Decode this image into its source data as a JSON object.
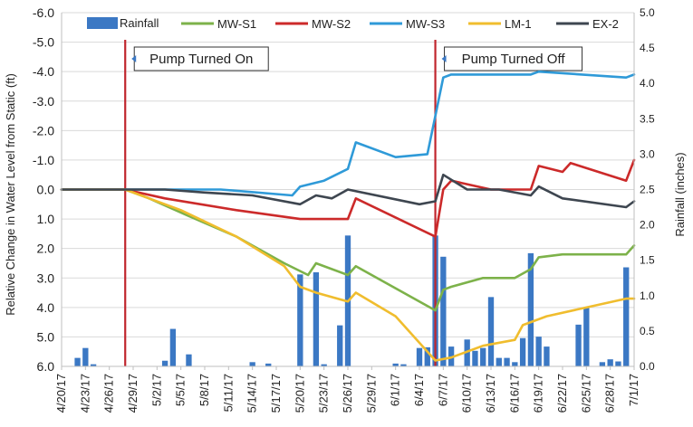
{
  "chart_data": {
    "type": "line",
    "ylabel": "Relative Change in Water Level from Static (ft)",
    "y2label": "Rainfall (inches)",
    "ylim": [
      6.0,
      -6.0
    ],
    "y_inverted": true,
    "y2lim": [
      0.0,
      5.0
    ],
    "y_ticks": [
      "-6.0",
      "-5.0",
      "-4.0",
      "-3.0",
      "-2.0",
      "-1.0",
      "0.0",
      "1.0",
      "2.0",
      "3.0",
      "4.0",
      "5.0",
      "6.0"
    ],
    "y2_ticks": [
      "0.0",
      "0.5",
      "1.0",
      "1.5",
      "2.0",
      "2.5",
      "3.0",
      "3.5",
      "4.0",
      "4.5",
      "5.0"
    ],
    "x_range": [
      "2017-04-20",
      "2017-07-01"
    ],
    "x_ticks": [
      "4/20/17",
      "4/23/17",
      "4/26/17",
      "4/29/17",
      "5/2/17",
      "5/5/17",
      "5/8/17",
      "5/11/17",
      "5/14/17",
      "5/17/17",
      "5/20/17",
      "5/23/17",
      "5/26/17",
      "5/29/17",
      "6/1/17",
      "6/4/17",
      "6/7/17",
      "6/10/17",
      "6/13/17",
      "6/16/17",
      "6/19/17",
      "6/22/17",
      "6/25/17",
      "6/28/17",
      "7/1/17"
    ],
    "legend_position": "top",
    "grid": "horizontal",
    "events": [
      {
        "label": "Pump Turned On",
        "x": "2017-04-28"
      },
      {
        "label": "Pump Turned Off",
        "x": "2017-06-06"
      }
    ],
    "rainfall": {
      "name": "Rainfall",
      "color": "#3b78c4",
      "bars": [
        {
          "x": "2017-04-22",
          "v": 0.12
        },
        {
          "x": "2017-04-23",
          "v": 0.26
        },
        {
          "x": "2017-04-24",
          "v": 0.03
        },
        {
          "x": "2017-05-03",
          "v": 0.08
        },
        {
          "x": "2017-05-04",
          "v": 0.53
        },
        {
          "x": "2017-05-06",
          "v": 0.17
        },
        {
          "x": "2017-05-14",
          "v": 0.06
        },
        {
          "x": "2017-05-16",
          "v": 0.04
        },
        {
          "x": "2017-05-20",
          "v": 1.3
        },
        {
          "x": "2017-05-22",
          "v": 1.33
        },
        {
          "x": "2017-05-23",
          "v": 0.03
        },
        {
          "x": "2017-05-25",
          "v": 0.58
        },
        {
          "x": "2017-05-26",
          "v": 1.85
        },
        {
          "x": "2017-06-01",
          "v": 0.04
        },
        {
          "x": "2017-06-02",
          "v": 0.03
        },
        {
          "x": "2017-06-04",
          "v": 0.26
        },
        {
          "x": "2017-06-05",
          "v": 0.27
        },
        {
          "x": "2017-06-06",
          "v": 1.85
        },
        {
          "x": "2017-06-07",
          "v": 1.55
        },
        {
          "x": "2017-06-08",
          "v": 0.28
        },
        {
          "x": "2017-06-10",
          "v": 0.38
        },
        {
          "x": "2017-06-11",
          "v": 0.22
        },
        {
          "x": "2017-06-12",
          "v": 0.26
        },
        {
          "x": "2017-06-13",
          "v": 0.98
        },
        {
          "x": "2017-06-14",
          "v": 0.12
        },
        {
          "x": "2017-06-15",
          "v": 0.12
        },
        {
          "x": "2017-06-16",
          "v": 0.06
        },
        {
          "x": "2017-06-17",
          "v": 0.4
        },
        {
          "x": "2017-06-18",
          "v": 1.6
        },
        {
          "x": "2017-06-19",
          "v": 0.42
        },
        {
          "x": "2017-06-20",
          "v": 0.28
        },
        {
          "x": "2017-06-24",
          "v": 0.59
        },
        {
          "x": "2017-06-25",
          "v": 0.83
        },
        {
          "x": "2017-06-27",
          "v": 0.06
        },
        {
          "x": "2017-06-28",
          "v": 0.1
        },
        {
          "x": "2017-06-29",
          "v": 0.07
        },
        {
          "x": "2017-06-30",
          "v": 1.4
        }
      ]
    },
    "series": [
      {
        "name": "MW-S1",
        "color": "#7db24a",
        "points": [
          [
            "2017-04-20",
            0.0
          ],
          [
            "2017-04-28",
            0.0
          ],
          [
            "2017-05-01",
            0.3
          ],
          [
            "2017-05-06",
            0.9
          ],
          [
            "2017-05-12",
            1.6
          ],
          [
            "2017-05-18",
            2.5
          ],
          [
            "2017-05-21",
            2.9
          ],
          [
            "2017-05-22",
            2.5
          ],
          [
            "2017-05-26",
            2.9
          ],
          [
            "2017-05-27",
            2.6
          ],
          [
            "2017-06-06",
            4.1
          ],
          [
            "2017-06-07",
            3.4
          ],
          [
            "2017-06-08",
            3.3
          ],
          [
            "2017-06-12",
            3.0
          ],
          [
            "2017-06-16",
            3.0
          ],
          [
            "2017-06-18",
            2.7
          ],
          [
            "2017-06-19",
            2.3
          ],
          [
            "2017-06-22",
            2.2
          ],
          [
            "2017-06-30",
            2.2
          ],
          [
            "2017-07-01",
            1.9
          ]
        ]
      },
      {
        "name": "MW-S2",
        "color": "#cc2a2a",
        "points": [
          [
            "2017-04-20",
            0.0
          ],
          [
            "2017-04-28",
            0.0
          ],
          [
            "2017-05-03",
            0.3
          ],
          [
            "2017-05-12",
            0.7
          ],
          [
            "2017-05-20",
            1.0
          ],
          [
            "2017-05-26",
            1.0
          ],
          [
            "2017-05-27",
            0.3
          ],
          [
            "2017-06-06",
            1.6
          ],
          [
            "2017-06-07",
            0.0
          ],
          [
            "2017-06-08",
            -0.3
          ],
          [
            "2017-06-13",
            0.0
          ],
          [
            "2017-06-18",
            0.0
          ],
          [
            "2017-06-19",
            -0.8
          ],
          [
            "2017-06-22",
            -0.6
          ],
          [
            "2017-06-23",
            -0.9
          ],
          [
            "2017-06-30",
            -0.3
          ],
          [
            "2017-07-01",
            -1.0
          ]
        ]
      },
      {
        "name": "MW-S3",
        "color": "#2f9ad8",
        "points": [
          [
            "2017-04-20",
            0.0
          ],
          [
            "2017-04-28",
            0.0
          ],
          [
            "2017-05-10",
            0.0
          ],
          [
            "2017-05-19",
            0.2
          ],
          [
            "2017-05-20",
            -0.1
          ],
          [
            "2017-05-23",
            -0.3
          ],
          [
            "2017-05-26",
            -0.7
          ],
          [
            "2017-05-27",
            -1.6
          ],
          [
            "2017-06-01",
            -1.1
          ],
          [
            "2017-06-05",
            -1.2
          ],
          [
            "2017-06-06",
            -2.5
          ],
          [
            "2017-06-07",
            -3.8
          ],
          [
            "2017-06-08",
            -3.9
          ],
          [
            "2017-06-18",
            -3.9
          ],
          [
            "2017-06-19",
            -4.0
          ],
          [
            "2017-06-30",
            -3.8
          ],
          [
            "2017-07-01",
            -3.9
          ]
        ]
      },
      {
        "name": "LM-1",
        "color": "#f0bd2e",
        "points": [
          [
            "2017-04-20",
            0.0
          ],
          [
            "2017-04-28",
            0.0
          ],
          [
            "2017-05-05",
            0.7
          ],
          [
            "2017-05-12",
            1.6
          ],
          [
            "2017-05-18",
            2.6
          ],
          [
            "2017-05-20",
            3.3
          ],
          [
            "2017-05-22",
            3.5
          ],
          [
            "2017-05-26",
            3.8
          ],
          [
            "2017-05-27",
            3.5
          ],
          [
            "2017-06-01",
            4.3
          ],
          [
            "2017-06-06",
            5.8
          ],
          [
            "2017-06-08",
            5.7
          ],
          [
            "2017-06-12",
            5.3
          ],
          [
            "2017-06-16",
            5.1
          ],
          [
            "2017-06-17",
            4.6
          ],
          [
            "2017-06-20",
            4.3
          ],
          [
            "2017-06-30",
            3.7
          ],
          [
            "2017-07-01",
            3.7
          ]
        ]
      },
      {
        "name": "EX-2",
        "color": "#3e4650",
        "points": [
          [
            "2017-04-20",
            0.0
          ],
          [
            "2017-04-28",
            0.0
          ],
          [
            "2017-05-03",
            0.0
          ],
          [
            "2017-05-08",
            0.1
          ],
          [
            "2017-05-14",
            0.2
          ],
          [
            "2017-05-20",
            0.5
          ],
          [
            "2017-05-22",
            0.2
          ],
          [
            "2017-05-24",
            0.3
          ],
          [
            "2017-05-26",
            0.0
          ],
          [
            "2017-06-04",
            0.5
          ],
          [
            "2017-06-06",
            0.4
          ],
          [
            "2017-06-07",
            -0.5
          ],
          [
            "2017-06-10",
            0.0
          ],
          [
            "2017-06-14",
            0.0
          ],
          [
            "2017-06-18",
            0.2
          ],
          [
            "2017-06-19",
            -0.1
          ],
          [
            "2017-06-22",
            0.3
          ],
          [
            "2017-06-30",
            0.6
          ],
          [
            "2017-07-01",
            0.4
          ]
        ]
      }
    ]
  }
}
